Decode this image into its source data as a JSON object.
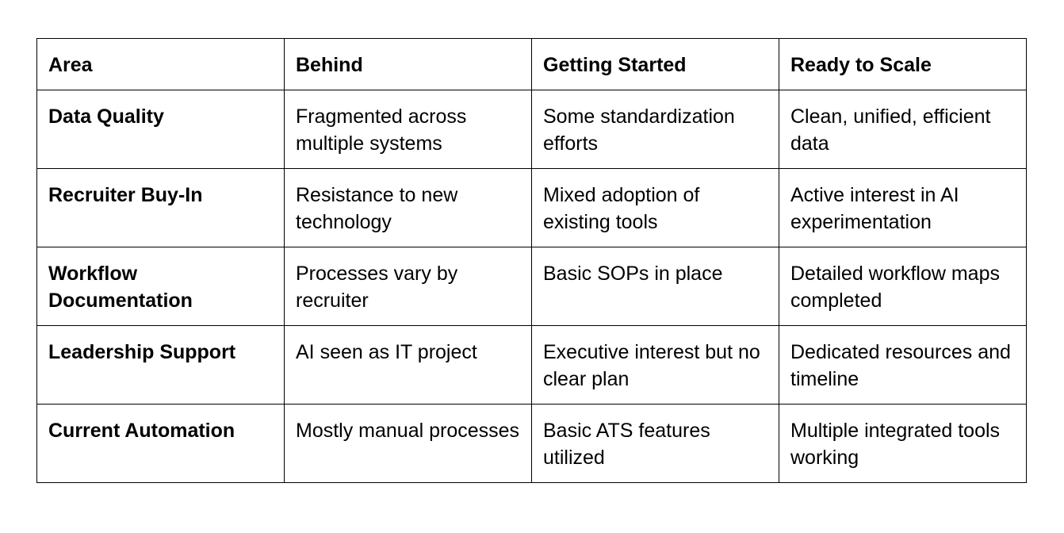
{
  "table": {
    "headers": [
      "Area",
      "Behind",
      "Getting Started",
      "Ready to Scale"
    ],
    "rows": [
      [
        "Data Quality",
        "Fragmented across multiple systems",
        "Some standardization efforts",
        "Clean, unified, efficient data"
      ],
      [
        "Recruiter Buy-In",
        "Resistance to new technology",
        "Mixed adoption of existing tools",
        "Active interest in AI experimentation"
      ],
      [
        "Workflow Documentation",
        "Processes vary by recruiter",
        "Basic SOPs in place",
        "Detailed workflow maps completed"
      ],
      [
        "Leadership Support",
        "AI seen as IT project",
        "Executive interest but no clear plan",
        "Dedicated resources and timeline"
      ],
      [
        "Current Automation",
        "Mostly manual processes",
        "Basic ATS features utilized",
        "Multiple integrated tools working"
      ]
    ]
  }
}
